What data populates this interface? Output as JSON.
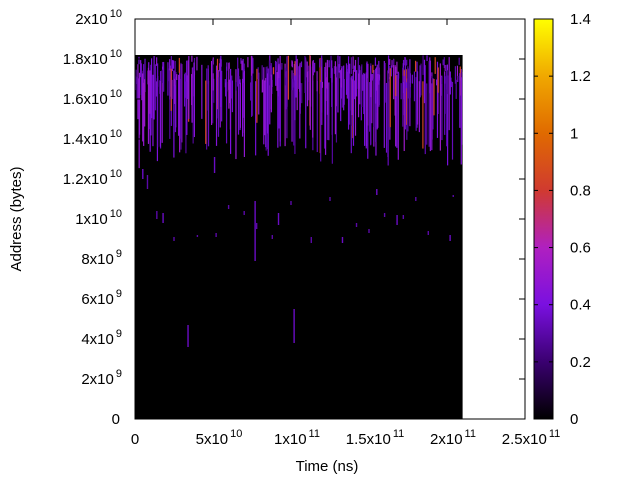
{
  "chart_data": {
    "type": "heatmap",
    "xlabel": "Time (ns)",
    "ylabel": "Address (bytes)",
    "xlim": [
      0,
      250000000000
    ],
    "ylim": [
      0,
      20000000000
    ],
    "x_ticks": [
      {
        "value": 0,
        "mant": "0",
        "exp": ""
      },
      {
        "value": 50000000000,
        "mant": "5x10",
        "exp": "10"
      },
      {
        "value": 100000000000,
        "mant": "1x10",
        "exp": "11"
      },
      {
        "value": 150000000000,
        "mant": "1.5x10",
        "exp": "11"
      },
      {
        "value": 200000000000,
        "mant": "2x10",
        "exp": "11"
      },
      {
        "value": 250000000000,
        "mant": "2.5x10",
        "exp": "11"
      }
    ],
    "y_ticks": [
      {
        "value": 0,
        "mant": "0",
        "exp": ""
      },
      {
        "value": 2000000000,
        "mant": "2x10",
        "exp": "9"
      },
      {
        "value": 4000000000,
        "mant": "4x10",
        "exp": "9"
      },
      {
        "value": 6000000000,
        "mant": "6x10",
        "exp": "9"
      },
      {
        "value": 8000000000,
        "mant": "8x10",
        "exp": "9"
      },
      {
        "value": 10000000000,
        "mant": "1x10",
        "exp": "10"
      },
      {
        "value": 12000000000,
        "mant": "1.2x10",
        "exp": "10"
      },
      {
        "value": 14000000000,
        "mant": "1.4x10",
        "exp": "10"
      },
      {
        "value": 16000000000,
        "mant": "1.6x10",
        "exp": "10"
      },
      {
        "value": 18000000000,
        "mant": "1.8x10",
        "exp": "10"
      },
      {
        "value": 20000000000,
        "mant": "2x10",
        "exp": "10"
      }
    ],
    "heatmap_extent": {
      "x": [
        0,
        210000000000
      ],
      "y": [
        0,
        18200000000
      ]
    },
    "background_value": 0,
    "colorbar": {
      "range": [
        0,
        1.4
      ],
      "ticks": [
        0,
        0.2,
        0.4,
        0.6,
        0.8,
        1,
        1.2,
        1.4
      ],
      "tick_labels": [
        "0",
        "0.2",
        "0.4",
        "0.6",
        "0.8",
        "1",
        "1.2",
        "1.4"
      ],
      "palette": [
        "#000000",
        "#3a0070",
        "#7a10e0",
        "#b020c0",
        "#d03a30",
        "#e06a00",
        "#f0a800",
        "#ffff00"
      ]
    },
    "dense_band": {
      "y": [
        12500000000,
        18200000000
      ],
      "value_range": [
        0.25,
        0.55
      ],
      "hot_value": 0.85,
      "streak_count": 420
    },
    "sparse_streaks": [
      {
        "x": 5000000000,
        "y": [
          12000000000,
          12500000000
        ],
        "value": 0.35
      },
      {
        "x": 8000000000,
        "y": [
          11500000000,
          12200000000
        ],
        "value": 0.3
      },
      {
        "x": 14000000000,
        "y": [
          10000000000,
          10400000000
        ],
        "value": 0.3
      },
      {
        "x": 18000000000,
        "y": [
          9800000000,
          10300000000
        ],
        "value": 0.35
      },
      {
        "x": 25000000000,
        "y": [
          8900000000,
          9100000000
        ],
        "value": 0.3
      },
      {
        "x": 34000000000,
        "y": [
          3600000000,
          4700000000
        ],
        "value": 0.35
      },
      {
        "x": 40000000000,
        "y": [
          9100000000,
          9200000000
        ],
        "value": 0.3
      },
      {
        "x": 51000000000,
        "y": [
          12300000000,
          13100000000
        ],
        "value": 0.35
      },
      {
        "x": 52000000000,
        "y": [
          9100000000,
          9300000000
        ],
        "value": 0.3
      },
      {
        "x": 60000000000,
        "y": [
          10500000000,
          10700000000
        ],
        "value": 0.3
      },
      {
        "x": 70000000000,
        "y": [
          10200000000,
          10400000000
        ],
        "value": 0.3
      },
      {
        "x": 77000000000,
        "y": [
          7900000000,
          10900000000
        ],
        "value": 0.35
      },
      {
        "x": 78000000000,
        "y": [
          9500000000,
          9800000000
        ],
        "value": 0.3
      },
      {
        "x": 88000000000,
        "y": [
          9000000000,
          9200000000
        ],
        "value": 0.3
      },
      {
        "x": 92000000000,
        "y": [
          9700000000,
          10300000000
        ],
        "value": 0.35
      },
      {
        "x": 100000000000,
        "y": [
          10700000000,
          10900000000
        ],
        "value": 0.3
      },
      {
        "x": 102000000000,
        "y": [
          3800000000,
          5500000000
        ],
        "value": 0.35
      },
      {
        "x": 113000000000,
        "y": [
          8800000000,
          9100000000
        ],
        "value": 0.3
      },
      {
        "x": 125000000000,
        "y": [
          10900000000,
          11100000000
        ],
        "value": 0.3
      },
      {
        "x": 133000000000,
        "y": [
          8800000000,
          9100000000
        ],
        "value": 0.35
      },
      {
        "x": 142000000000,
        "y": [
          9600000000,
          9800000000
        ],
        "value": 0.3
      },
      {
        "x": 150000000000,
        "y": [
          9300000000,
          9500000000
        ],
        "value": 0.3
      },
      {
        "x": 155000000000,
        "y": [
          11200000000,
          11500000000
        ],
        "value": 0.35
      },
      {
        "x": 160000000000,
        "y": [
          10100000000,
          10300000000
        ],
        "value": 0.3
      },
      {
        "x": 168000000000,
        "y": [
          9700000000,
          10200000000
        ],
        "value": 0.35
      },
      {
        "x": 172000000000,
        "y": [
          10000000000,
          10200000000
        ],
        "value": 0.3
      },
      {
        "x": 180000000000,
        "y": [
          10900000000,
          11100000000
        ],
        "value": 0.3
      },
      {
        "x": 188000000000,
        "y": [
          9200000000,
          9400000000
        ],
        "value": 0.3
      },
      {
        "x": 202000000000,
        "y": [
          8900000000,
          9200000000
        ],
        "value": 0.35
      },
      {
        "x": 204000000000,
        "y": [
          11100000000,
          11200000000
        ],
        "value": 0.3
      }
    ]
  }
}
